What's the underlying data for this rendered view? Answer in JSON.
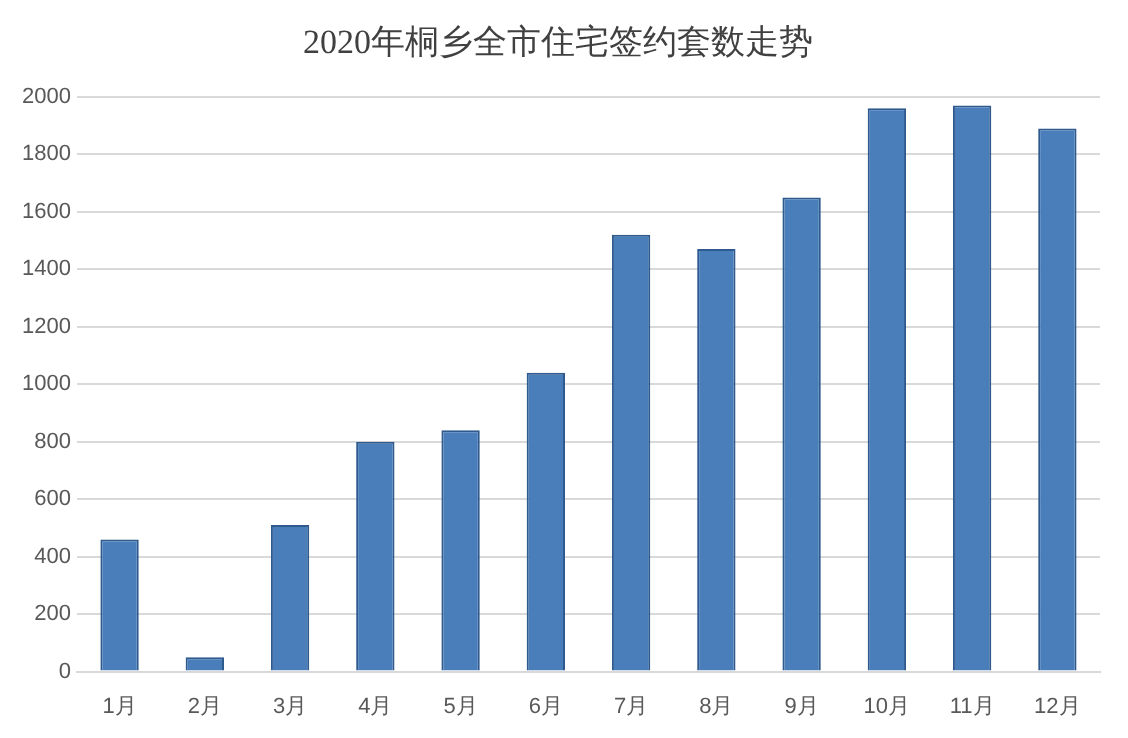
{
  "chart_data": {
    "type": "bar",
    "title": "2020年桐乡全市住宅签约套数走势",
    "categories": [
      "1月",
      "2月",
      "3月",
      "4月",
      "5月",
      "6月",
      "7月",
      "8月",
      "9月",
      "10月",
      "11月",
      "12月"
    ],
    "values": [
      460,
      50,
      510,
      800,
      840,
      1040,
      1520,
      1470,
      1650,
      1960,
      1970,
      1890
    ],
    "color": "#4a7ebb",
    "ylim": [
      0,
      2000
    ],
    "yticks": [
      0,
      200,
      400,
      600,
      800,
      1000,
      1200,
      1400,
      1600,
      1800,
      2000
    ],
    "grid": "y"
  }
}
